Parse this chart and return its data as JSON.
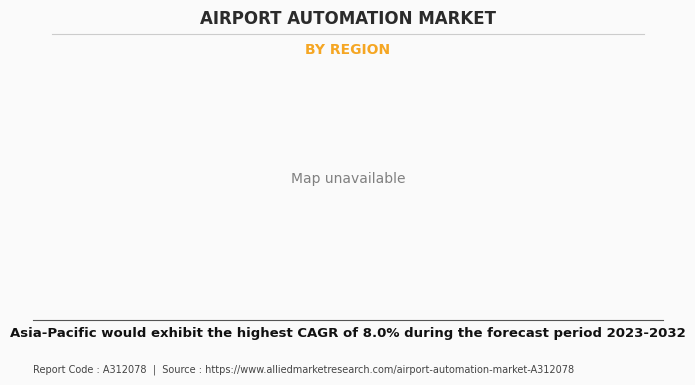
{
  "title": "AIRPORT AUTOMATION MARKET",
  "subtitle": "BY REGION",
  "subtitle_color": "#F5A623",
  "title_color": "#2B2B2B",
  "background_color": "#FAFAFA",
  "land_color_green": "#8FBC8B",
  "land_color_north_america": "#E0E0E0",
  "ocean_color": "#FAFAFA",
  "border_color": "#B8D4E8",
  "shadow_color": "#AAAAAA",
  "footer_text": "Asia-Pacific would exhibit the highest CAGR of 8.0% during the forecast period 2023-2032",
  "report_code_text": "Report Code : A312078  |  Source : https://www.alliedmarketresearch.com/airport-automation-market-A312078",
  "title_fontsize": 12,
  "subtitle_fontsize": 10,
  "footer_fontsize": 9.5,
  "report_fontsize": 7
}
